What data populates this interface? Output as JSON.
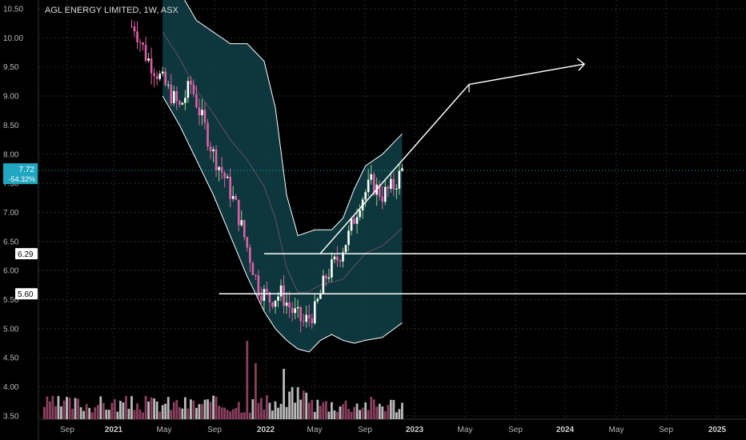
{
  "header": {
    "symbol_title": "AGL ENERGY LIMITED, 1W, ASX"
  },
  "colors": {
    "background": "#000000",
    "band_fill": "#0e3d44",
    "band_line": "#ffffff",
    "candle_up": "#9ccf8a",
    "candle_down": "#e060a8",
    "volume": "#a24a6e",
    "volume_light": "#d8d8d8",
    "price_tag": "#1fa6c0",
    "annotation": "#ffffff"
  },
  "price_tag": {
    "price": "7.72",
    "change": "-54.32%"
  },
  "levels": [
    {
      "label": "6.29",
      "value": 6.29
    },
    {
      "label": "5.60",
      "value": 5.6
    }
  ],
  "chart_data": {
    "type": "line",
    "title": "AGL ENERGY LIMITED, 1W, ASX",
    "xlabel": "",
    "ylabel": "",
    "ylim": [
      3.45,
      10.55
    ],
    "y_ticks": [
      "10.50",
      "10.00",
      "9.50",
      "9.00",
      "8.50",
      "8.00",
      "7.50",
      "7.00",
      "6.50",
      "6.00",
      "5.50",
      "5.00",
      "4.50",
      "4.00",
      "3.50"
    ],
    "x_ticks": [
      {
        "label": "Sep",
        "bold": false
      },
      {
        "label": "2021",
        "bold": true
      },
      {
        "label": "May",
        "bold": false
      },
      {
        "label": "Sep",
        "bold": false
      },
      {
        "label": "2022",
        "bold": true
      },
      {
        "label": "May",
        "bold": false
      },
      {
        "label": "Sep",
        "bold": false
      },
      {
        "label": "2023",
        "bold": true
      },
      {
        "label": "May",
        "bold": false
      },
      {
        "label": "Sep",
        "bold": false
      },
      {
        "label": "2024",
        "bold": true
      },
      {
        "label": "May",
        "bold": false
      },
      {
        "label": "Sep",
        "bold": false
      },
      {
        "label": "2025",
        "bold": true
      }
    ],
    "price_series": {
      "name": "",
      "x_week": [
        0,
        4,
        8,
        12,
        16,
        20,
        24,
        28,
        32,
        36,
        40,
        44,
        48,
        52,
        56,
        60,
        64,
        68,
        72,
        76,
        80,
        84,
        88,
        92,
        95
      ],
      "close": [
        10.2,
        9.7,
        9.4,
        9.1,
        8.8,
        9.2,
        8.6,
        8.0,
        7.6,
        7.1,
        6.4,
        5.7,
        5.5,
        5.6,
        5.3,
        5.1,
        5.3,
        5.9,
        6.2,
        6.6,
        7.2,
        7.5,
        7.3,
        7.45,
        7.72
      ]
    },
    "bollinger_upper": {
      "x_week": [
        10,
        16,
        22,
        28,
        34,
        40,
        46,
        50,
        54,
        58,
        64,
        70,
        74,
        78,
        82,
        88,
        95
      ],
      "y": [
        11.2,
        10.8,
        10.3,
        10.1,
        9.9,
        9.9,
        9.6,
        8.8,
        7.3,
        6.6,
        6.7,
        6.7,
        6.9,
        7.4,
        7.8,
        8.0,
        8.35
      ]
    },
    "bollinger_lower": {
      "x_week": [
        10,
        16,
        22,
        28,
        34,
        40,
        46,
        50,
        54,
        58,
        62,
        66,
        70,
        74,
        78,
        82,
        88,
        95
      ],
      "y": [
        9.0,
        8.5,
        7.9,
        7.3,
        6.6,
        5.9,
        5.3,
        5.0,
        4.8,
        4.65,
        4.6,
        4.8,
        4.9,
        4.8,
        4.75,
        4.8,
        4.85,
        5.1
      ]
    },
    "volume_bars": 100,
    "annotation_arrow": {
      "points_desc": "support 6.29 then up to 9.2 (~May 2023) then 9.5 (~2024)",
      "values": [
        6.29,
        9.2,
        9.55
      ]
    }
  }
}
